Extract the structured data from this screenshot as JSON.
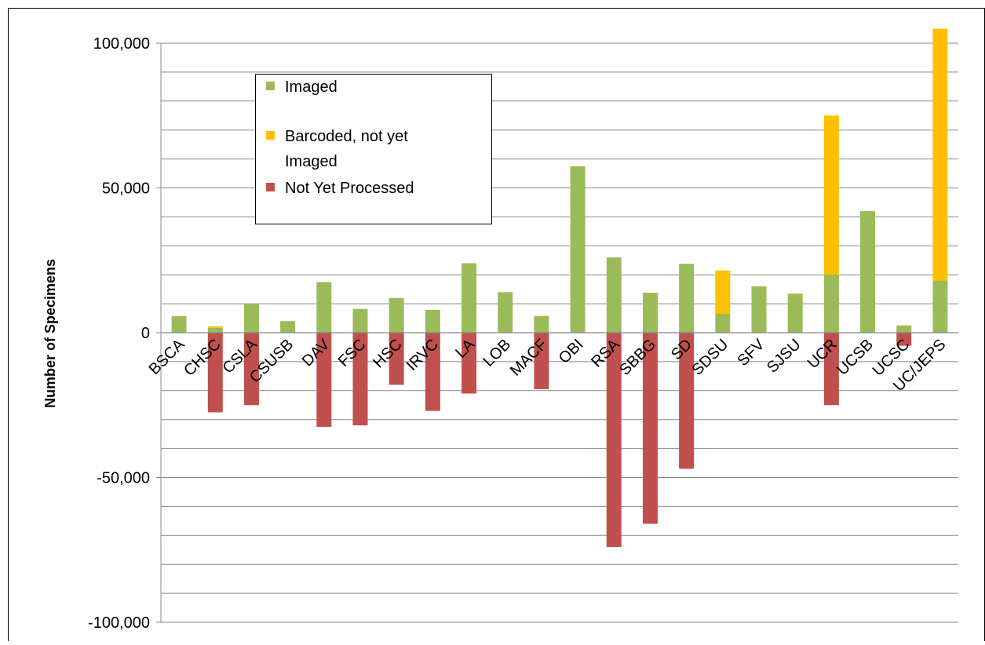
{
  "chart_data": {
    "type": "bar",
    "stacked": true,
    "categories": [
      "BSCA",
      "CHSC",
      "CSLA",
      "CSUSB",
      "DAV",
      "FSC",
      "HSC",
      "IRVC",
      "LA",
      "LOB",
      "MACF",
      "OBI",
      "RSA",
      "SBBG",
      "SD",
      "SDSU",
      "SFV",
      "SJSU",
      "UCR",
      "UCSB",
      "UCSC",
      "UC/JEPS"
    ],
    "series": [
      {
        "name": "Imaged",
        "color": "#9BBB59",
        "values": [
          5700,
          1700,
          9800,
          4000,
          17500,
          8200,
          12000,
          7900,
          24000,
          14000,
          5800,
          57500,
          26000,
          13800,
          23800,
          6500,
          16000,
          13500,
          20000,
          42000,
          2500,
          18000
        ]
      },
      {
        "name": "Barcoded, not yet Imaged",
        "color": "#FFC000",
        "values": [
          0,
          500,
          0,
          0,
          0,
          0,
          0,
          0,
          0,
          0,
          0,
          0,
          0,
          0,
          0,
          15000,
          0,
          0,
          55000,
          0,
          0,
          87000
        ]
      },
      {
        "name": "Not Yet Processed",
        "color": "#C0504D",
        "values": [
          0,
          -27500,
          -25000,
          0,
          -32500,
          -32000,
          -18000,
          -27000,
          -21000,
          0,
          -19500,
          0,
          -74000,
          -66000,
          -47000,
          0,
          0,
          0,
          -25000,
          0,
          -4500,
          0
        ]
      }
    ],
    "ylabel": "Number of Specimens",
    "xlabel": "",
    "title": "",
    "ylim": [
      -100000,
      100000
    ],
    "y_ticks": [
      {
        "value": 100000,
        "label": "100,000"
      },
      {
        "value": 50000,
        "label": "50,000"
      },
      {
        "value": 0,
        "label": "0"
      },
      {
        "value": -50000,
        "label": "-50,000"
      },
      {
        "value": -100000,
        "label": "-100,000"
      }
    ],
    "minor_grid_step": 10000,
    "grid": true,
    "legend_position": "top-left",
    "legend": [
      {
        "lines": [
          "Imaged"
        ],
        "color": "#9BBB59"
      },
      {
        "lines": [
          "Barcoded, not yet",
          "Imaged"
        ],
        "color": "#FFC000"
      },
      {
        "lines": [
          "Not Yet Processed"
        ],
        "color": "#C0504D"
      }
    ]
  }
}
